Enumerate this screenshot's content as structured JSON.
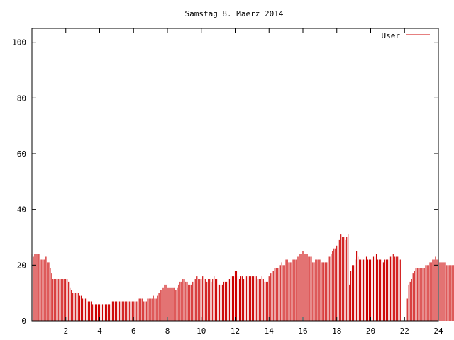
{
  "chart_data": {
    "type": "bar",
    "title": "Samstag 8. Maerz 2014",
    "xlabel": "",
    "ylabel": "",
    "xlim": [
      0,
      24
    ],
    "ylim": [
      0,
      105
    ],
    "xticks": [
      2,
      4,
      6,
      8,
      10,
      12,
      14,
      16,
      18,
      20,
      22,
      24
    ],
    "yticks": [
      0,
      20,
      40,
      60,
      80,
      100
    ],
    "grid": false,
    "legend_position": "top-right",
    "bar_color": "#cc0000",
    "series": [
      {
        "name": "User",
        "x_start": 0,
        "x_step": 0.0833333,
        "values": [
          24,
          23,
          24,
          24,
          24,
          24,
          22,
          22,
          22,
          22,
          23,
          21,
          21,
          19,
          17,
          15,
          15,
          15,
          15,
          15,
          15,
          15,
          15,
          15,
          15,
          15,
          14,
          12,
          11,
          10,
          10,
          10,
          10,
          10,
          9,
          9,
          8,
          8,
          8,
          7,
          7,
          7,
          7,
          6,
          6,
          6,
          6,
          6,
          6,
          6,
          6,
          6,
          6,
          6,
          6,
          6,
          6,
          7,
          7,
          7,
          7,
          7,
          7,
          7,
          7,
          7,
          7,
          7,
          7,
          7,
          7,
          7,
          7,
          7,
          7,
          7,
          8,
          8,
          8,
          7,
          7,
          7,
          8,
          8,
          8,
          8,
          9,
          8,
          8,
          9,
          10,
          11,
          11,
          12,
          13,
          13,
          12,
          12,
          12,
          12,
          12,
          12,
          11,
          12,
          13,
          14,
          14,
          15,
          15,
          14,
          14,
          13,
          13,
          13,
          14,
          15,
          15,
          16,
          15,
          15,
          15,
          16,
          15,
          15,
          14,
          15,
          15,
          14,
          15,
          16,
          15,
          15,
          13,
          13,
          13,
          13,
          14,
          14,
          14,
          15,
          15,
          16,
          16,
          16,
          18,
          18,
          16,
          15,
          16,
          16,
          15,
          15,
          16,
          16,
          16,
          16,
          16,
          16,
          16,
          16,
          15,
          15,
          15,
          16,
          15,
          14,
          14,
          14,
          16,
          17,
          17,
          18,
          19,
          19,
          19,
          19,
          20,
          21,
          20,
          20,
          22,
          22,
          21,
          21,
          21,
          22,
          22,
          22,
          23,
          23,
          24,
          24,
          25,
          24,
          24,
          24,
          23,
          23,
          23,
          21,
          21,
          22,
          22,
          22,
          22,
          21,
          21,
          21,
          21,
          21,
          23,
          23,
          24,
          25,
          26,
          26,
          27,
          29,
          29,
          31,
          30,
          30,
          29,
          30,
          31,
          13,
          18,
          20,
          20,
          22,
          25,
          23,
          22,
          22,
          22,
          22,
          22,
          23,
          22,
          22,
          22,
          22,
          23,
          23,
          24,
          22,
          22,
          22,
          22,
          21,
          22,
          22,
          22,
          22,
          23,
          23,
          24,
          23,
          23,
          23,
          23,
          22,
          0,
          0,
          0,
          0,
          8,
          13,
          14,
          15,
          17,
          18,
          19,
          19,
          19,
          19,
          19,
          19,
          19,
          20,
          20,
          20,
          21,
          21,
          22,
          22,
          23,
          22,
          22,
          21,
          21,
          21,
          21,
          21,
          20,
          20,
          20,
          20,
          20,
          20,
          20
        ]
      }
    ]
  }
}
